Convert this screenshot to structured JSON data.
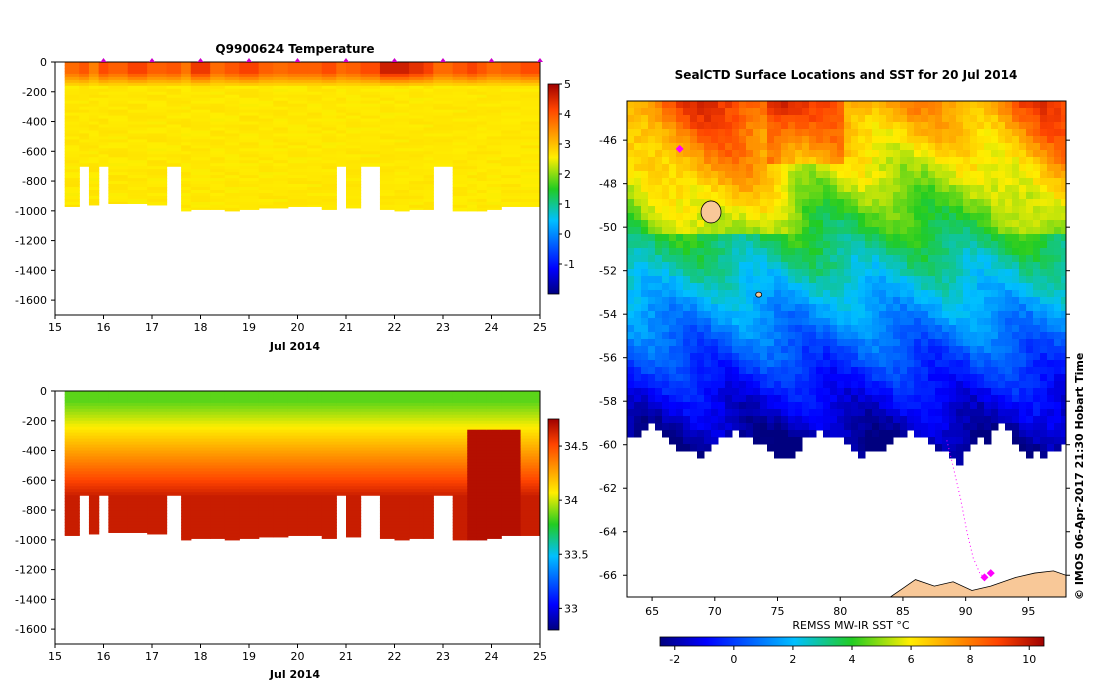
{
  "chart_data": [
    {
      "id": "temperature",
      "type": "heatmap",
      "title": "Q9900624  Temperature",
      "xlabel": "Jul 2014",
      "xlim": [
        15,
        25
      ],
      "xticks": [
        "15",
        "16",
        "17",
        "18",
        "19",
        "20",
        "21",
        "22",
        "23",
        "24",
        "25"
      ],
      "ylim": [
        -1700,
        0
      ],
      "yticks": [
        "0",
        "-200",
        "-400",
        "-600",
        "-800",
        "-1000",
        "-1200",
        "-1400",
        "-1600"
      ],
      "colorbar": {
        "min": -2,
        "max": 5,
        "ticks": [
          "5",
          "4",
          "3",
          "2",
          "1",
          "0",
          "-1"
        ],
        "colormap": "jet"
      },
      "profile_days": [
        15.2,
        15.5,
        15.7,
        15.9,
        16.1,
        16.5,
        16.9,
        17.3,
        17.6,
        17.8,
        18.2,
        18.5,
        18.8,
        19.2,
        19.5,
        19.8,
        20.2,
        20.5,
        20.8,
        21.0,
        21.3,
        21.7,
        22.0,
        22.3,
        22.6,
        22.8,
        23.2,
        23.5,
        23.7,
        23.9,
        24.2,
        24.6,
        25.0
      ],
      "profile_max_depth": [
        -970,
        -700,
        -960,
        -700,
        -950,
        -950,
        -960,
        -700,
        -1000,
        -990,
        -990,
        -1000,
        -990,
        -980,
        -980,
        -970,
        -970,
        -990,
        -700,
        -980,
        -700,
        -990,
        -1000,
        -990,
        -990,
        -700,
        -1000,
        -1000,
        -1000,
        -990,
        -970,
        -970,
        -970
      ],
      "surface_temp": [
        3.8,
        4.0,
        3.6,
        4.1,
        3.9,
        4.2,
        3.9,
        4.0,
        3.7,
        4.3,
        3.8,
        4.0,
        4.2,
        3.9,
        3.8,
        3.9,
        3.9,
        4.1,
        3.8,
        3.9,
        4.1,
        4.6,
        4.6,
        4.4,
        4.2,
        3.8,
        4.0,
        4.2,
        4.0,
        3.8,
        3.9,
        4.1,
        3.9
      ],
      "deep_temp": 2.6,
      "markers_x": [
        16,
        17,
        18,
        19,
        20,
        21,
        22,
        23,
        24,
        25
      ]
    },
    {
      "id": "salinity",
      "type": "heatmap",
      "title": "",
      "xlabel": "Jul 2014",
      "xlim": [
        15,
        25
      ],
      "xticks": [
        "15",
        "16",
        "17",
        "18",
        "19",
        "20",
        "21",
        "22",
        "23",
        "24",
        "25"
      ],
      "ylim": [
        -1700,
        0
      ],
      "yticks": [
        "0",
        "-200",
        "-400",
        "-600",
        "-800",
        "-1000",
        "-1200",
        "-1400",
        "-1600"
      ],
      "colorbar": {
        "min": 32.8,
        "max": 34.75,
        "ticks": [
          "34.5",
          "34",
          "33.5",
          "33"
        ],
        "colormap": "jet"
      },
      "surface_sal": 33.85,
      "deep_sal": 34.65
    },
    {
      "id": "sst_map",
      "type": "heatmap",
      "title": "SealCTD Surface Locations and SST for 20 Jul 2014",
      "xlim": [
        63,
        98
      ],
      "ylim": [
        -67,
        -44.2
      ],
      "xticks": [
        "65",
        "70",
        "75",
        "80",
        "85",
        "90",
        "95"
      ],
      "yticks": [
        "-46",
        "-48",
        "-50",
        "-52",
        "-54",
        "-56",
        "-58",
        "-60",
        "-62",
        "-64",
        "-66"
      ],
      "colorbar": {
        "label": "REMSS MW-IR SST °C",
        "min": -2.5,
        "max": 10.5,
        "ticks": [
          "-2",
          "0",
          "2",
          "4",
          "6",
          "8",
          "10"
        ],
        "colormap": "jet"
      },
      "seal_track": [
        [
          88.5,
          -59.8
        ],
        [
          89.0,
          -61
        ],
        [
          89.6,
          -62.5
        ],
        [
          90.1,
          -64
        ],
        [
          90.6,
          -65.2
        ],
        [
          91.2,
          -66
        ],
        [
          91.8,
          -66.0
        ],
        [
          92.3,
          -65.9
        ]
      ],
      "seal_locations": [
        [
          67.2,
          -46.4
        ],
        [
          91.5,
          -66.1
        ],
        [
          92.0,
          -65.9
        ]
      ]
    }
  ],
  "credit": "© IMOS 06-Apr-2017 21:30 Hobart Time"
}
